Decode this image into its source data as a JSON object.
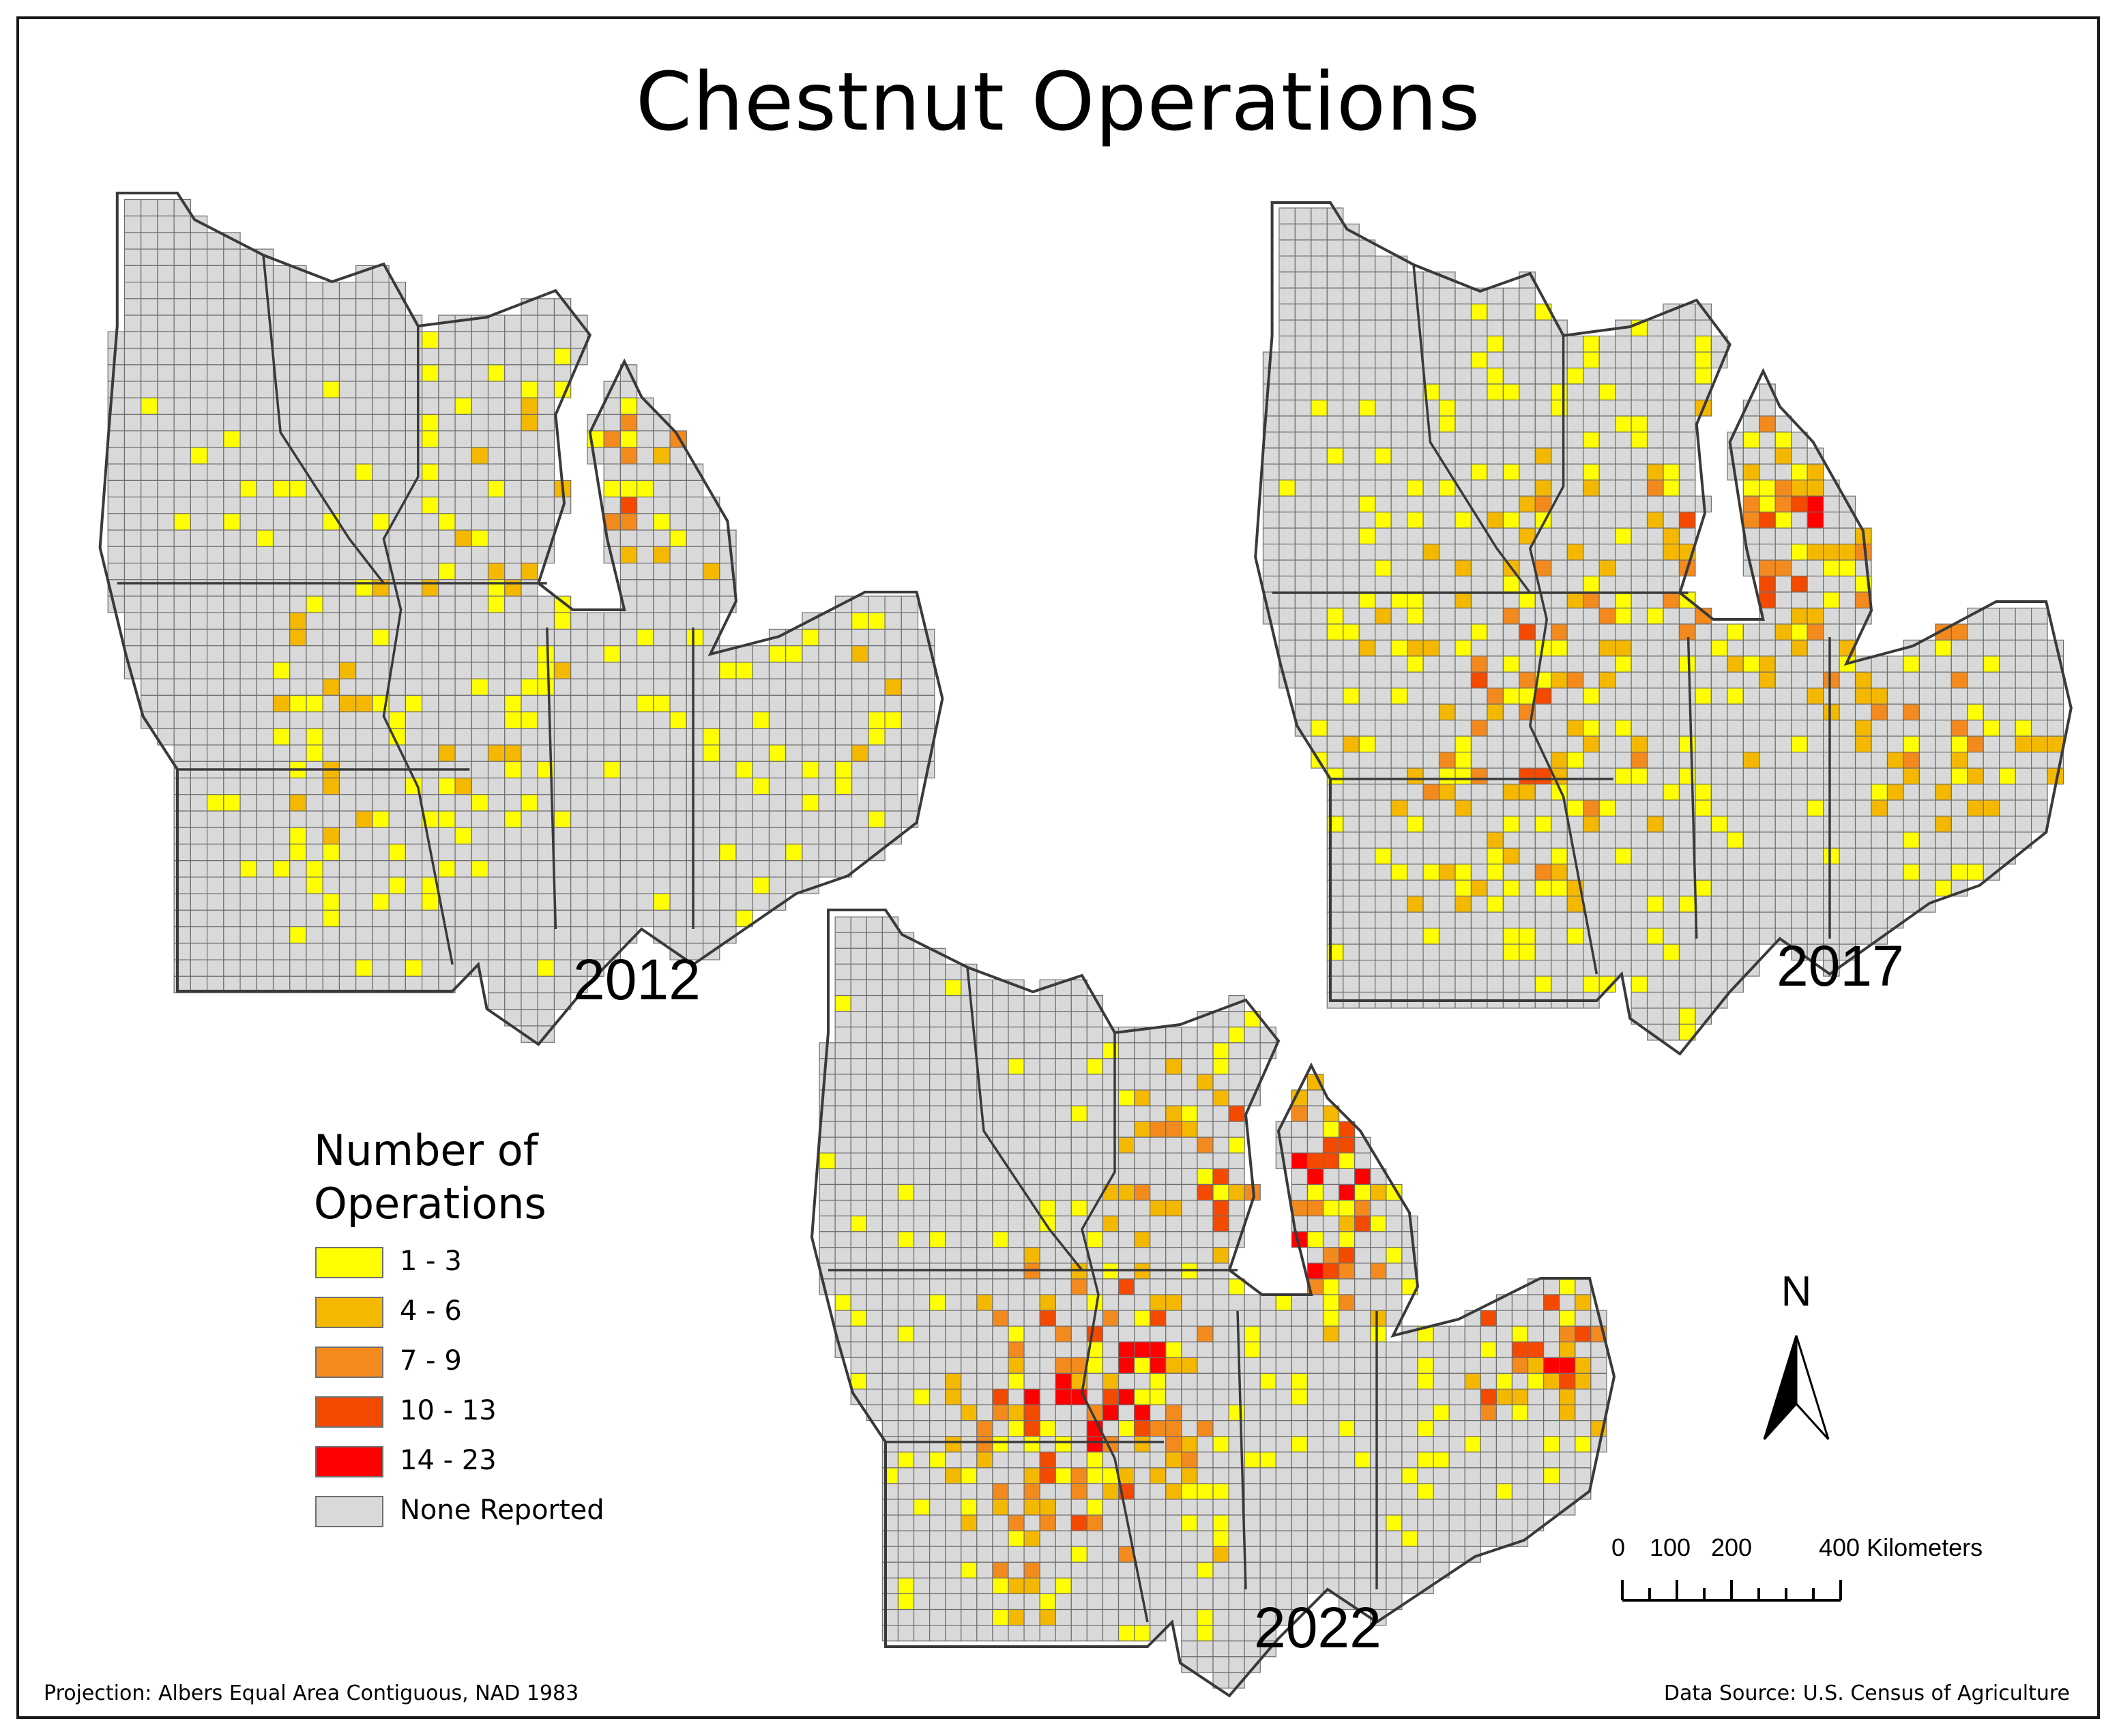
{
  "title": "Chestnut Operations",
  "colors": {
    "none": "#d9d9d9",
    "border": "#6e6e6e",
    "state_border": "#3a3a3a",
    "class1": "#ffff00",
    "class2": "#f5b800",
    "class3": "#f28a1e",
    "class4": "#f44a00",
    "class5": "#ff0000"
  },
  "maps": [
    {
      "id": "map-2012",
      "year_label": "2012"
    },
    {
      "id": "map-2017",
      "year_label": "2017"
    },
    {
      "id": "map-2022",
      "year_label": "2022"
    }
  ],
  "legend": {
    "title": "Number of Operations",
    "items": [
      {
        "label": "1 - 3",
        "color": "#ffff00"
      },
      {
        "label": "4 - 6",
        "color": "#f5b800"
      },
      {
        "label": "7 - 9",
        "color": "#f28a1e"
      },
      {
        "label": "10 - 13",
        "color": "#f44a00"
      },
      {
        "label": "14 - 23",
        "color": "#ff0000"
      },
      {
        "label": "None Reported",
        "color": "#d9d9d9"
      }
    ]
  },
  "north_arrow": {
    "label": "N"
  },
  "scale_bar": {
    "tick_labels": [
      "0",
      "100",
      "200",
      "400 Kilometers"
    ]
  },
  "footer": {
    "projection": "Projection: Albers Equal Area Contiguous, NAD 1983",
    "source": "Data Source: U.S. Census of Agriculture"
  }
}
